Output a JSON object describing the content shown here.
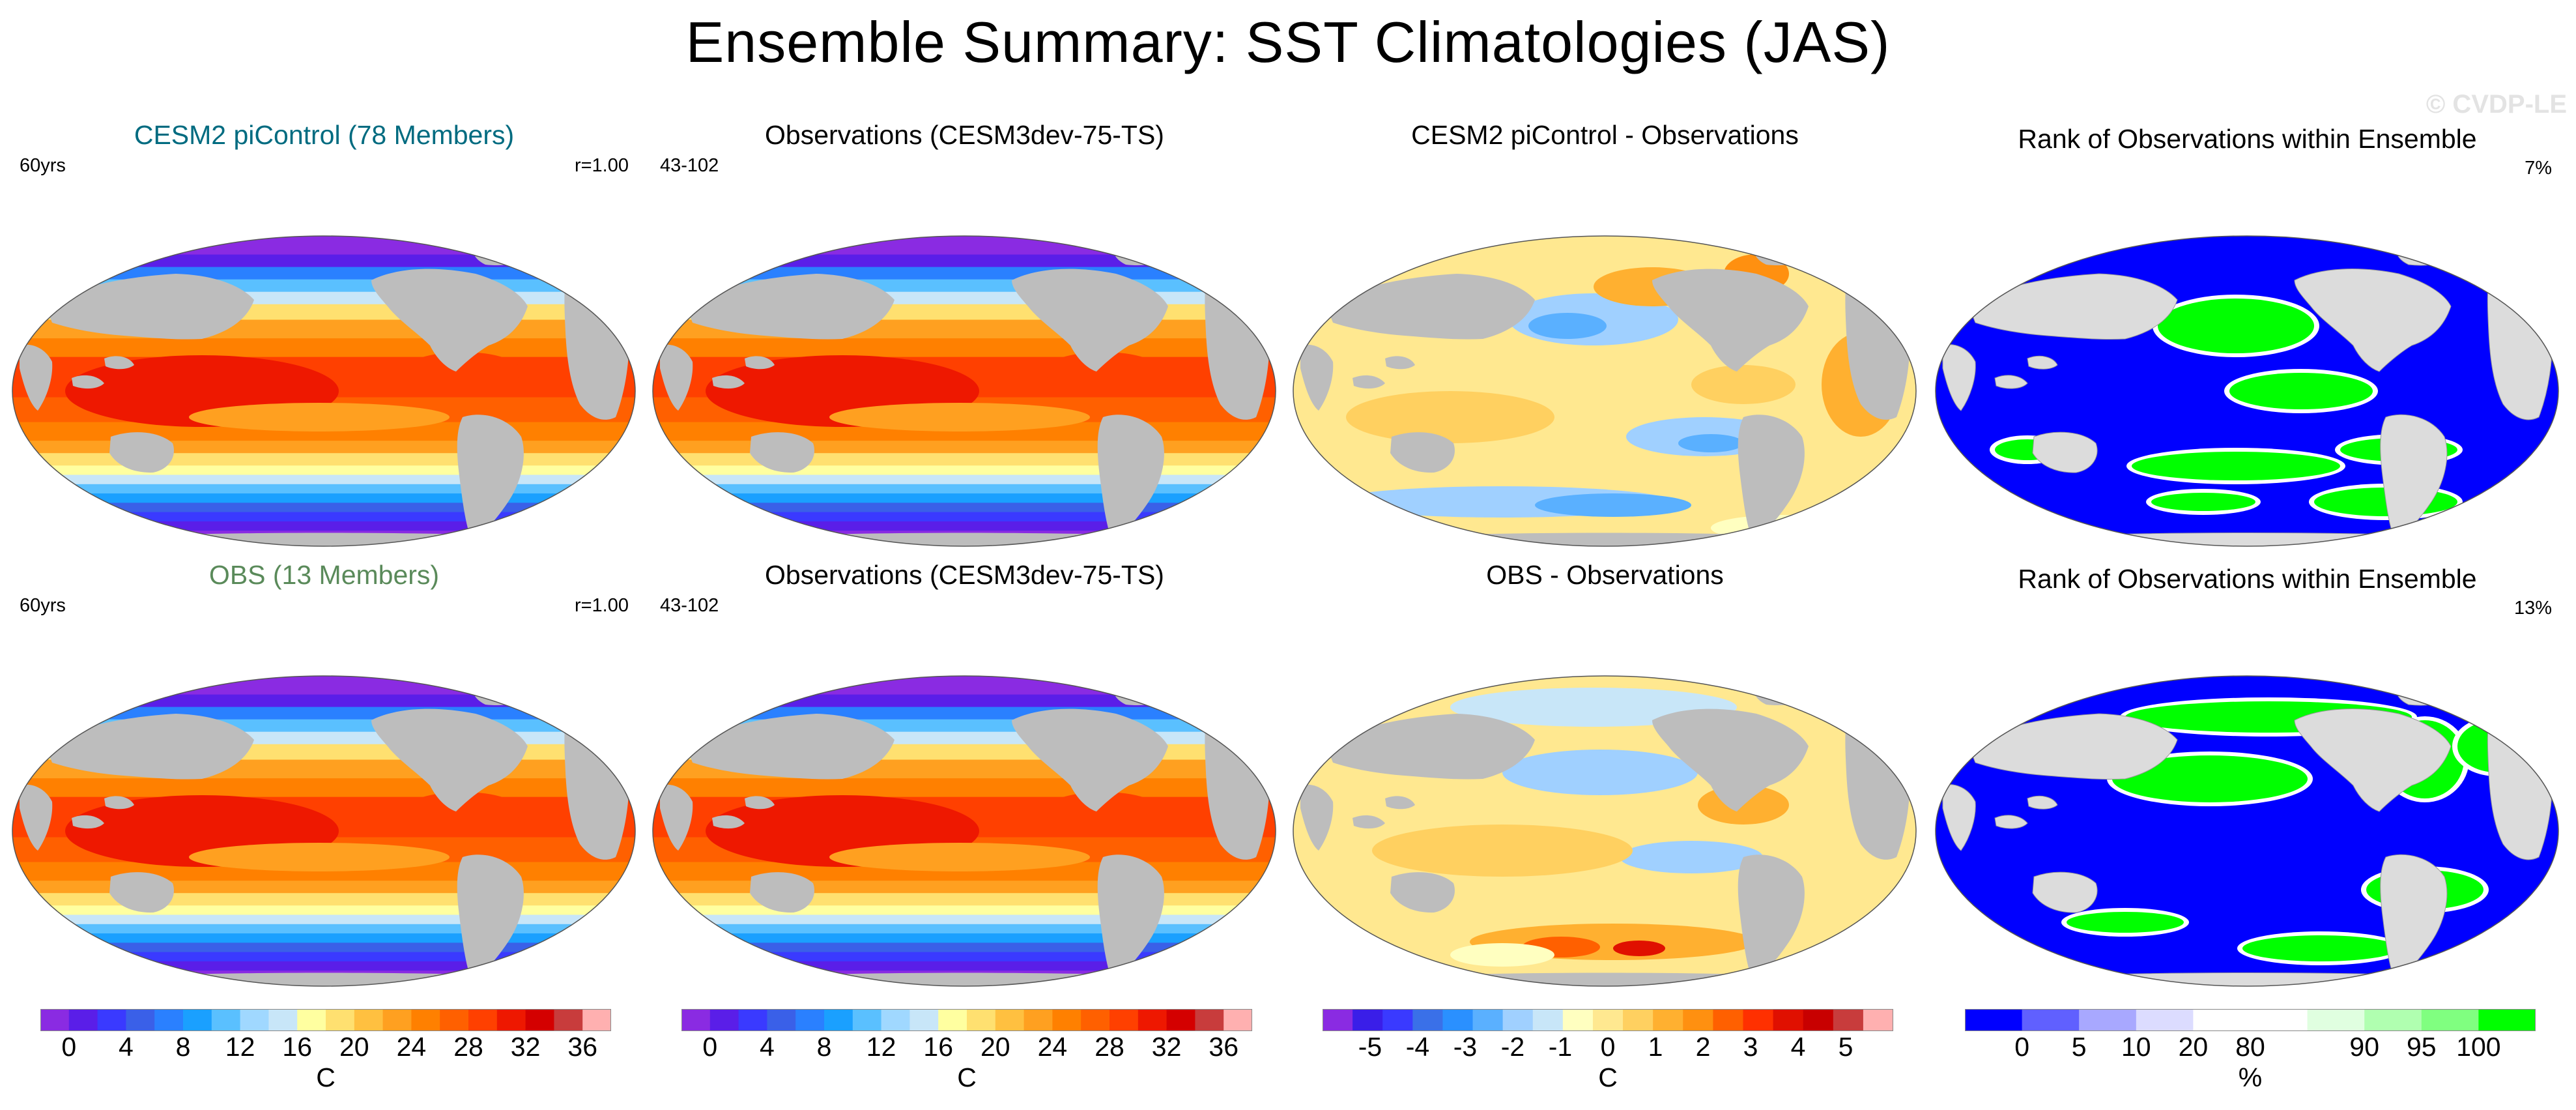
{
  "title": "Ensemble Summary: SST Climatologies (JAS)",
  "watermark": "© CVDP-LE",
  "colors": {
    "land_gray": "#bdbdbd",
    "land_light": "#dcdcdc",
    "rank_blue": "#0000ff",
    "rank_green": "#00ff00",
    "title_teal": "#006b80",
    "title_green": "#5a8a5a"
  },
  "panels": [
    {
      "id": "p11",
      "title": "CESM2 piControl (78 Members)",
      "left": "60yrs",
      "right": "r=1.00",
      "title_color": "#006b80",
      "kind": "sst"
    },
    {
      "id": "p12",
      "title": "Observations (CESM3dev-75-TS)",
      "left": "43-102",
      "right": "",
      "title_color": "#000000",
      "kind": "sst"
    },
    {
      "id": "p13",
      "title": "CESM2 piControl - Observations",
      "left": "",
      "right": "",
      "title_color": "#000000",
      "kind": "diff"
    },
    {
      "id": "p14",
      "title": "Rank of Observations within Ensemble",
      "left": "",
      "right": "7%",
      "title_color": "#000000",
      "kind": "rank"
    },
    {
      "id": "p21",
      "title": "OBS (13 Members)",
      "left": "60yrs",
      "right": "r=1.00",
      "title_color": "#5a8a5a",
      "kind": "sst"
    },
    {
      "id": "p22",
      "title": "Observations (CESM3dev-75-TS)",
      "left": "43-102",
      "right": "",
      "title_color": "#000000",
      "kind": "sst"
    },
    {
      "id": "p23",
      "title": "OBS - Observations",
      "left": "",
      "right": "",
      "title_color": "#000000",
      "kind": "diff"
    },
    {
      "id": "p24",
      "title": "Rank of Observations within Ensemble",
      "left": "",
      "right": "13%",
      "title_color": "#000000",
      "kind": "rank"
    }
  ],
  "chart_data": [
    {
      "type": "heatmap",
      "panel": "CESM2 piControl (78 Members)",
      "field": "SST climatology (JAS)",
      "units": "C",
      "annotations": [
        "60yrs",
        "r=1.00"
      ],
      "colorbar_ticks": [
        0,
        4,
        8,
        12,
        16,
        20,
        24,
        28,
        32,
        36
      ]
    },
    {
      "type": "heatmap",
      "panel": "Observations (CESM3dev-75-TS)",
      "field": "SST climatology (JAS)",
      "units": "C",
      "annotations": [
        "43-102"
      ],
      "colorbar_ticks": [
        0,
        4,
        8,
        12,
        16,
        20,
        24,
        28,
        32,
        36
      ]
    },
    {
      "type": "heatmap",
      "panel": "CESM2 piControl - Observations",
      "field": "SST difference",
      "units": "C",
      "colorbar_ticks": [
        -5,
        -4,
        -3,
        -2,
        -1,
        0,
        1,
        2,
        3,
        4,
        5
      ]
    },
    {
      "type": "heatmap",
      "panel": "Rank of Observations within Ensemble",
      "field": "rank",
      "units": "%",
      "annotations": [
        "7%"
      ],
      "colorbar_ticks": [
        0,
        5,
        10,
        20,
        80,
        90,
        95,
        100
      ]
    },
    {
      "type": "heatmap",
      "panel": "OBS (13 Members)",
      "field": "SST climatology (JAS)",
      "units": "C",
      "annotations": [
        "60yrs",
        "r=1.00"
      ],
      "colorbar_ticks": [
        0,
        4,
        8,
        12,
        16,
        20,
        24,
        28,
        32,
        36
      ]
    },
    {
      "type": "heatmap",
      "panel": "Observations (CESM3dev-75-TS)",
      "field": "SST climatology (JAS)",
      "units": "C",
      "annotations": [
        "43-102"
      ],
      "colorbar_ticks": [
        0,
        4,
        8,
        12,
        16,
        20,
        24,
        28,
        32,
        36
      ]
    },
    {
      "type": "heatmap",
      "panel": "OBS - Observations",
      "field": "SST difference",
      "units": "C",
      "colorbar_ticks": [
        -5,
        -4,
        -3,
        -2,
        -1,
        0,
        1,
        2,
        3,
        4,
        5
      ]
    },
    {
      "type": "heatmap",
      "panel": "Rank of Observations within Ensemble",
      "field": "rank",
      "units": "%",
      "annotations": [
        "13%"
      ],
      "colorbar_ticks": [
        0,
        5,
        10,
        20,
        80,
        90,
        95,
        100
      ]
    }
  ],
  "colorbars": [
    {
      "id": "cb1",
      "label": "C",
      "colors": [
        "#8a2be2",
        "#5a1ee8",
        "#3a3aff",
        "#3a60e8",
        "#2a80ff",
        "#1aa0ff",
        "#5ac0ff",
        "#a0d8ff",
        "#c8e6f8",
        "#ffffa0",
        "#ffe070",
        "#ffc040",
        "#ffa020",
        "#ff8000",
        "#ff6000",
        "#ff4000",
        "#ee1800",
        "#d40000",
        "#c83c3c",
        "#ffb0b0"
      ],
      "ticks": [
        "0",
        "4",
        "8",
        "12",
        "16",
        "20",
        "24",
        "28",
        "32",
        "36"
      ]
    },
    {
      "id": "cb2",
      "label": "C",
      "colors": [
        "#8a2be2",
        "#5a1ee8",
        "#3a3aff",
        "#3a60e8",
        "#2a80ff",
        "#1aa0ff",
        "#5ac0ff",
        "#a0d8ff",
        "#c8e6f8",
        "#ffffa0",
        "#ffe070",
        "#ffc040",
        "#ffa020",
        "#ff8000",
        "#ff6000",
        "#ff4000",
        "#ee1800",
        "#d40000",
        "#c83c3c",
        "#ffb0b0"
      ],
      "ticks": [
        "0",
        "4",
        "8",
        "12",
        "16",
        "20",
        "24",
        "28",
        "32",
        "36"
      ]
    },
    {
      "id": "cb3",
      "label": "C",
      "colors": [
        "#8a2be2",
        "#3a1ee8",
        "#3a3aff",
        "#3a70e8",
        "#2a90ff",
        "#5ab0ff",
        "#a0d0ff",
        "#c8e6f8",
        "#ffffc0",
        "#ffe890",
        "#ffd060",
        "#ffb030",
        "#ff9010",
        "#ff6000",
        "#ff3000",
        "#e01000",
        "#c80000",
        "#c83c3c",
        "#ffb0b0"
      ],
      "ticks": [
        "-5",
        "-4",
        "-3",
        "-2",
        "-1",
        "0",
        "1",
        "2",
        "3",
        "4",
        "5"
      ]
    },
    {
      "id": "cb4",
      "label": "%",
      "colors": [
        "#0000ff",
        "#6060ff",
        "#a8a8ff",
        "#dcdcff",
        "#ffffff",
        "#ffffff",
        "#e0ffe0",
        "#b0ffb0",
        "#80ff80",
        "#00ff00"
      ],
      "ticks": [
        "0",
        "5",
        "10",
        "20",
        "80",
        "90",
        "95",
        "100"
      ]
    }
  ]
}
